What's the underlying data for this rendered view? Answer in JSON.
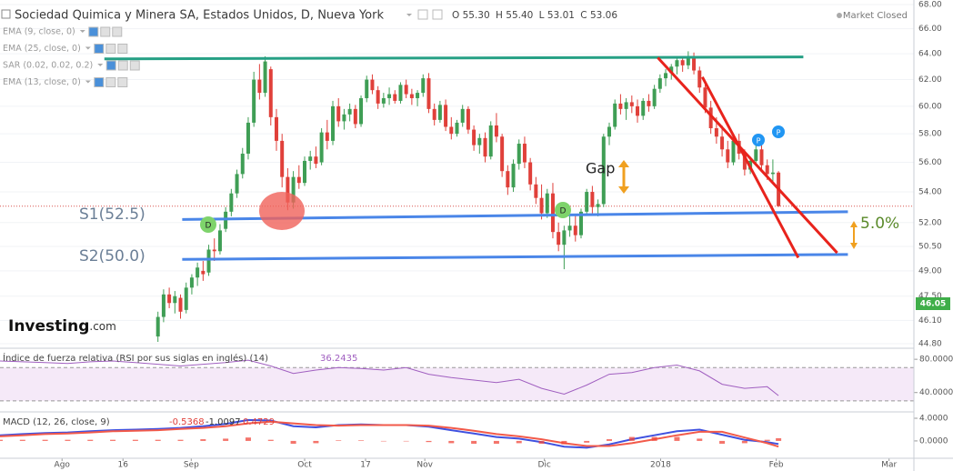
{
  "header": {
    "title": "Sociedad Quimica y Minera SA, Estados Unidos, D, Nueva York",
    "ohlc": [
      [
        "O",
        "55.30"
      ],
      [
        "H",
        "55.40"
      ],
      [
        "L",
        "53.01"
      ],
      [
        "C",
        "53.06"
      ]
    ],
    "status": "Market Closed",
    "indicators": [
      "EMA (9, close, 0)",
      "EMA (25, close, 0)",
      "SAR (0.02, 0.02, 0.2)",
      "EMA (13, close, 0)"
    ]
  },
  "logo": {
    "brand": "Investing",
    "suffix": ".com"
  },
  "chart_data": [
    {
      "type": "candlestick",
      "log_scale": true,
      "grid": true,
      "up_color": "#3f9e55",
      "down_color": "#e0403a",
      "xlim": [
        -28,
        134
      ],
      "xticks": [
        {
          "value": -17,
          "label": "Ago"
        },
        {
          "value": -6.2,
          "label": "16"
        },
        {
          "value": 5.9,
          "label": "Sep"
        },
        {
          "value": 26,
          "label": "Oct"
        },
        {
          "value": 36.8,
          "label": "17"
        },
        {
          "value": 47.3,
          "label": "Nov"
        },
        {
          "value": 68.5,
          "label": "Dic"
        },
        {
          "value": 89.1,
          "label": "2018"
        },
        {
          "value": 109.6,
          "label": "Feb"
        },
        {
          "value": 129.6,
          "label": "Mar"
        }
      ],
      "ylim": [
        44.7,
        68.38
      ],
      "yticks": [
        {
          "value": 68,
          "label": "68.00"
        },
        {
          "value": 66,
          "label": "66.00"
        },
        {
          "value": 64,
          "label": "64.00"
        },
        {
          "value": 62,
          "label": "62.00"
        },
        {
          "value": 60,
          "label": "60.00"
        },
        {
          "value": 58,
          "label": "58.00"
        },
        {
          "value": 56,
          "label": "56.00"
        },
        {
          "value": 54,
          "label": "54.00"
        },
        {
          "value": 52,
          "label": "52.00"
        },
        {
          "value": 50.5,
          "label": "50.50"
        },
        {
          "value": 49,
          "label": "49.00"
        },
        {
          "value": 47.5,
          "label": "47.50"
        },
        {
          "value": 46.1,
          "label": "46.10"
        },
        {
          "value": 44.8,
          "label": "44.80"
        }
      ],
      "badge": 46.05,
      "ohlc": [
        [
          45.2,
          46.6,
          44.9,
          46.3
        ],
        [
          46.3,
          47.9,
          46.0,
          47.6
        ],
        [
          47.6,
          48.0,
          46.8,
          47.1
        ],
        [
          47.1,
          47.8,
          46.5,
          47.5
        ],
        [
          47.4,
          47.6,
          46.2,
          46.6
        ],
        [
          46.7,
          48.3,
          46.5,
          48.0
        ],
        [
          48.0,
          48.8,
          47.6,
          48.6
        ],
        [
          48.6,
          49.5,
          48.1,
          49.2
        ],
        [
          49.0,
          49.6,
          48.4,
          48.8
        ],
        [
          48.9,
          50.6,
          48.7,
          50.3
        ],
        [
          50.3,
          51.0,
          49.6,
          50.2
        ],
        [
          50.2,
          51.9,
          50.0,
          51.5
        ],
        [
          51.6,
          53.0,
          51.4,
          52.7
        ],
        [
          52.7,
          54.2,
          52.4,
          53.9
        ],
        [
          53.9,
          55.5,
          53.6,
          55.2
        ],
        [
          55.2,
          57.0,
          54.9,
          56.6
        ],
        [
          56.6,
          59.2,
          56.2,
          58.8
        ],
        [
          58.8,
          62.6,
          58.5,
          62.0
        ],
        [
          62.0,
          63.2,
          60.5,
          61.0
        ],
        [
          61.0,
          63.8,
          60.7,
          63.4
        ],
        [
          62.8,
          63.0,
          58.6,
          59.2
        ],
        [
          59.2,
          59.8,
          56.8,
          57.5
        ],
        [
          57.5,
          58.0,
          54.3,
          55.0
        ],
        [
          55.0,
          55.6,
          52.8,
          53.3
        ],
        [
          53.3,
          55.4,
          52.9,
          55.0
        ],
        [
          55.0,
          55.8,
          54.2,
          54.6
        ],
        [
          54.6,
          56.4,
          54.4,
          56.1
        ],
        [
          56.1,
          56.8,
          55.5,
          56.4
        ],
        [
          56.4,
          57.1,
          55.6,
          55.9
        ],
        [
          56.0,
          58.4,
          55.8,
          58.1
        ],
        [
          58.1,
          59.0,
          56.9,
          57.5
        ],
        [
          57.5,
          60.4,
          57.2,
          60.0
        ],
        [
          60.0,
          60.6,
          58.5,
          58.9
        ],
        [
          58.9,
          59.8,
          58.3,
          59.4
        ],
        [
          59.4,
          60.2,
          58.9,
          59.8
        ],
        [
          59.8,
          60.1,
          58.4,
          58.7
        ],
        [
          58.7,
          60.8,
          58.5,
          60.6
        ],
        [
          60.6,
          62.3,
          60.3,
          62.0
        ],
        [
          62.0,
          62.4,
          60.9,
          61.2
        ],
        [
          61.2,
          61.5,
          59.8,
          60.2
        ],
        [
          60.2,
          61.0,
          59.9,
          60.6
        ],
        [
          60.6,
          61.4,
          60.1,
          60.9
        ],
        [
          60.9,
          61.2,
          60.2,
          60.4
        ],
        [
          60.4,
          61.8,
          60.2,
          61.6
        ],
        [
          61.6,
          62.0,
          60.6,
          60.9
        ],
        [
          60.9,
          61.3,
          60.1,
          60.6
        ],
        [
          60.6,
          61.2,
          60.0,
          61.0
        ],
        [
          61.0,
          62.4,
          60.7,
          62.1
        ],
        [
          62.1,
          62.5,
          59.5,
          59.8
        ],
        [
          59.8,
          60.2,
          58.6,
          59.0
        ],
        [
          59.0,
          60.4,
          58.8,
          60.1
        ],
        [
          60.1,
          60.5,
          58.2,
          58.5
        ],
        [
          58.5,
          59.2,
          57.6,
          58.0
        ],
        [
          58.0,
          59.0,
          57.8,
          58.8
        ],
        [
          58.8,
          60.1,
          58.5,
          59.8
        ],
        [
          59.8,
          60.0,
          58.0,
          58.3
        ],
        [
          58.3,
          58.6,
          56.8,
          57.2
        ],
        [
          57.2,
          58.0,
          56.6,
          57.7
        ],
        [
          57.7,
          58.1,
          56.0,
          56.4
        ],
        [
          56.4,
          58.9,
          56.2,
          58.6
        ],
        [
          58.6,
          59.5,
          57.4,
          57.8
        ],
        [
          57.8,
          58.0,
          55.0,
          55.4
        ],
        [
          55.4,
          55.8,
          53.8,
          54.3
        ],
        [
          54.3,
          56.2,
          54.0,
          55.9
        ],
        [
          55.9,
          57.6,
          55.5,
          57.3
        ],
        [
          57.3,
          57.8,
          55.6,
          56.0
        ],
        [
          56.0,
          56.3,
          54.1,
          54.5
        ],
        [
          54.5,
          55.0,
          53.2,
          53.6
        ],
        [
          53.6,
          54.5,
          52.2,
          52.6
        ],
        [
          52.6,
          54.2,
          52.3,
          53.9
        ],
        [
          53.9,
          54.6,
          51.0,
          51.4
        ],
        [
          51.4,
          52.0,
          50.2,
          50.6
        ],
        [
          50.6,
          51.8,
          49.1,
          51.5
        ],
        [
          51.5,
          52.4,
          51.1,
          51.8
        ],
        [
          51.8,
          52.5,
          50.8,
          51.2
        ],
        [
          51.2,
          52.9,
          51.0,
          52.7
        ],
        [
          52.7,
          54.2,
          52.5,
          54.0
        ],
        [
          54.0,
          54.4,
          52.6,
          53.0
        ],
        [
          53.0,
          53.5,
          52.4,
          53.2
        ],
        [
          53.2,
          58.0,
          53.0,
          57.8
        ],
        [
          57.8,
          58.8,
          57.2,
          58.5
        ],
        [
          58.5,
          60.5,
          58.3,
          60.2
        ],
        [
          60.2,
          60.9,
          59.4,
          59.8
        ],
        [
          59.8,
          60.6,
          59.0,
          60.3
        ],
        [
          60.3,
          60.8,
          59.5,
          60.0
        ],
        [
          60.0,
          60.5,
          58.8,
          59.3
        ],
        [
          59.3,
          60.6,
          59.0,
          60.4
        ],
        [
          60.4,
          60.9,
          59.6,
          60.0
        ],
        [
          60.0,
          61.6,
          59.8,
          61.3
        ],
        [
          61.3,
          62.4,
          61.0,
          62.1
        ],
        [
          62.1,
          62.8,
          61.5,
          62.5
        ],
        [
          62.5,
          63.2,
          62.0,
          63.0
        ],
        [
          63.0,
          63.8,
          62.4,
          63.5
        ],
        [
          63.5,
          63.7,
          62.6,
          63.1
        ],
        [
          63.1,
          64.2,
          62.8,
          63.8
        ],
        [
          63.8,
          64.1,
          62.4,
          62.7
        ],
        [
          62.7,
          63.0,
          61.0,
          61.4
        ],
        [
          61.4,
          61.8,
          59.5,
          59.9
        ],
        [
          59.9,
          60.4,
          58.0,
          58.4
        ],
        [
          58.4,
          59.2,
          57.3,
          57.8
        ],
        [
          57.8,
          58.6,
          56.4,
          56.9
        ],
        [
          56.9,
          57.5,
          55.6,
          56.0
        ],
        [
          56.0,
          57.8,
          55.8,
          57.5
        ],
        [
          57.5,
          58.0,
          56.2,
          56.6
        ],
        [
          56.6,
          56.9,
          55.1,
          55.5
        ],
        [
          55.5,
          56.4,
          55.2,
          56.1
        ],
        [
          56.1,
          57.2,
          55.8,
          56.9
        ],
        [
          56.9,
          57.4,
          55.4,
          55.8
        ],
        [
          55.8,
          56.2,
          54.8,
          55.2
        ],
        [
          55.2,
          56.2,
          54.6,
          55.3
        ],
        [
          55.3,
          55.4,
          53.01,
          53.06
        ]
      ],
      "trend_lines": [
        {
          "color": "#26a085",
          "points": [
            [
              -9.5,
              63.6
            ],
            [
              114.4,
              63.75
            ]
          ]
        },
        {
          "color": "#4a86e8",
          "points": [
            [
              4.3,
              52.2
            ],
            [
              122.3,
              52.7
            ]
          ]
        },
        {
          "color": "#4a86e8",
          "points": [
            [
              4.3,
              49.7
            ],
            [
              122.3,
              50.0
            ]
          ]
        },
        {
          "color": "#e8231c",
          "points": [
            [
              88.6,
              63.7
            ],
            [
              120.4,
              50.1
            ]
          ]
        },
        {
          "color": "#e8231c",
          "points": [
            [
              96.5,
              62.2
            ],
            [
              113.5,
              49.8
            ]
          ]
        }
      ],
      "annotations": {
        "s1": "S1(52.5)",
        "s2": "S2(50.0)",
        "gap": "Gap",
        "pct": "5.0%",
        "markers": [
          "D",
          "D",
          "P",
          "P"
        ]
      }
    },
    {
      "type": "line",
      "title": "Índice de fuerza relativa (RSI por sus siglas en inglés) (14)",
      "x": [
        -28,
        -24,
        -20,
        -16,
        -12,
        -8,
        -4,
        0,
        4,
        8,
        12,
        16,
        20,
        24,
        28,
        32,
        36,
        40,
        44,
        48,
        52,
        56,
        60,
        64,
        68,
        72,
        76,
        80,
        84,
        88,
        92,
        96,
        100,
        104,
        108,
        110
      ],
      "series": [
        {
          "color": "#a05fc0",
          "values": [
            78,
            77,
            76,
            75,
            77,
            78,
            76,
            74,
            72,
            74,
            76,
            79,
            72,
            63,
            67,
            70,
            69,
            67,
            70,
            62,
            58,
            55,
            52,
            56,
            45,
            38,
            49,
            62,
            64,
            70,
            73,
            66,
            50,
            45,
            47,
            36.2435
          ]
        }
      ],
      "ylim": [
        20,
        90
      ],
      "yticks": [
        {
          "value": 80,
          "label": "80.0000"
        },
        {
          "value": 40,
          "label": "40.0000"
        }
      ],
      "bands": [
        30,
        70
      ],
      "band_color": "#f5e9f8"
    },
    {
      "type": "line",
      "title": "MACD (12, 26, close, 9)",
      "x": [
        -28,
        -24,
        -20,
        -16,
        -12,
        -8,
        -4,
        0,
        4,
        8,
        12,
        16,
        20,
        24,
        28,
        32,
        36,
        40,
        44,
        48,
        52,
        56,
        60,
        64,
        68,
        72,
        76,
        80,
        84,
        88,
        92,
        96,
        100,
        104,
        108,
        110
      ],
      "series": [
        {
          "color": "#3f51e0",
          "values": [
            1.0,
            1.2,
            1.4,
            1.5,
            1.7,
            1.9,
            2.0,
            2.1,
            2.3,
            2.6,
            3.0,
            3.7,
            3.6,
            2.6,
            2.4,
            2.8,
            2.9,
            2.8,
            2.8,
            2.5,
            1.9,
            1.3,
            0.7,
            0.4,
            -0.2,
            -1.0,
            -1.2,
            -0.6,
            0.3,
            1.0,
            1.7,
            2.0,
            1.1,
            0.2,
            -0.2,
            -0.5368
          ]
        },
        {
          "color": "#f25a4a",
          "values": [
            0.8,
            1.0,
            1.2,
            1.3,
            1.5,
            1.7,
            1.8,
            1.9,
            2.1,
            2.3,
            2.6,
            3.1,
            3.4,
            3.1,
            2.8,
            2.7,
            2.8,
            2.8,
            2.8,
            2.7,
            2.3,
            1.8,
            1.2,
            0.8,
            0.3,
            -0.4,
            -0.9,
            -0.9,
            -0.4,
            0.3,
            1.0,
            1.6,
            1.6,
            0.6,
            -0.4,
            -1.0097
          ]
        },
        {
          "color": "#f0453a",
          "style": "histogram",
          "values": [
            0.2,
            0.2,
            0.2,
            0.2,
            0.2,
            0.2,
            0.2,
            0.2,
            0.2,
            0.3,
            0.4,
            0.6,
            0.2,
            -0.5,
            -0.4,
            0.1,
            0.1,
            0,
            0,
            -0.2,
            -0.4,
            -0.5,
            -0.5,
            -0.4,
            -0.5,
            -0.6,
            -0.3,
            0.3,
            0.7,
            0.7,
            0.7,
            0.4,
            -0.5,
            -0.4,
            0.2,
            0.4729
          ]
        }
      ],
      "ylim": [
        -2.9,
        4.8
      ],
      "yticks": [
        {
          "value": 4,
          "label": "4.0000"
        },
        {
          "value": 0,
          "label": "0.0000"
        }
      ]
    }
  ]
}
